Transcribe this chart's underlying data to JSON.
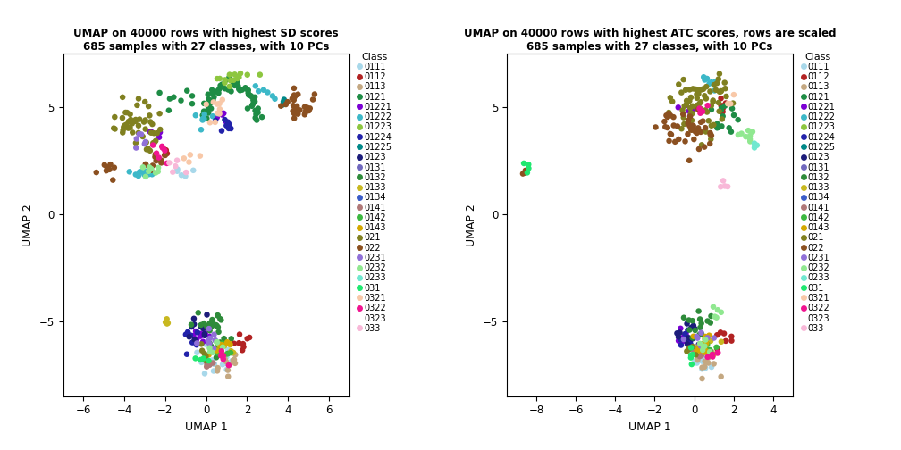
{
  "title1": "UMAP on 40000 rows with highest SD scores\n685 samples with 27 classes, with 10 PCs",
  "title2": "UMAP on 40000 rows with highest ATC scores, rows are scaled\n685 samples with 27 classes, with 10 PCs",
  "xlabel": "UMAP 1",
  "ylabel": "UMAP 2",
  "legend_title": "Class",
  "classes": [
    "0111",
    "0112",
    "0113",
    "0121",
    "01221",
    "01222",
    "01223",
    "01224",
    "01225",
    "0123",
    "0131",
    "0132",
    "0133",
    "0134",
    "0141",
    "0142",
    "0143",
    "021",
    "022",
    "0231",
    "0232",
    "0233",
    "031",
    "0321",
    "0322",
    "0323",
    "033"
  ],
  "colors": {
    "0111": "#A8D8EA",
    "0112": "#B22222",
    "0113": "#C4A882",
    "0121": "#1E8C45",
    "01221": "#7B00D4",
    "01222": "#3CB8C8",
    "01223": "#8DC63F",
    "01224": "#2222AA",
    "01225": "#008888",
    "0123": "#1C1C7A",
    "0131": "#7068BE",
    "0132": "#2E8B3A",
    "0133": "#C8B820",
    "0134": "#3A5CC8",
    "0141": "#B07878",
    "0142": "#3CB840",
    "0143": "#D4A800",
    "021": "#808020",
    "022": "#8B5020",
    "0231": "#9070D8",
    "0232": "#90E890",
    "0233": "#70E8D0",
    "031": "#20E870",
    "0321": "#F8C8A8",
    "0322": "#F01490",
    "0323": "#FFFFFF",
    "033": "#F8B8D8"
  },
  "plot1_xlim": [
    -7,
    7
  ],
  "plot1_ylim": [
    -8.5,
    7.5
  ],
  "plot1_xticks": [
    -6,
    -4,
    -2,
    0,
    2,
    4,
    6
  ],
  "plot1_yticks": [
    -5,
    0,
    5
  ],
  "plot2_xlim": [
    -9.5,
    5
  ],
  "plot2_ylim": [
    -8.5,
    7.5
  ],
  "plot2_xticks": [
    -8,
    -6,
    -4,
    -2,
    0,
    2,
    4
  ],
  "plot2_yticks": [
    -5,
    0,
    5
  ],
  "background_color": "#FFFFFF",
  "plot_bg_color": "#FFFFFF",
  "point_size": 22
}
